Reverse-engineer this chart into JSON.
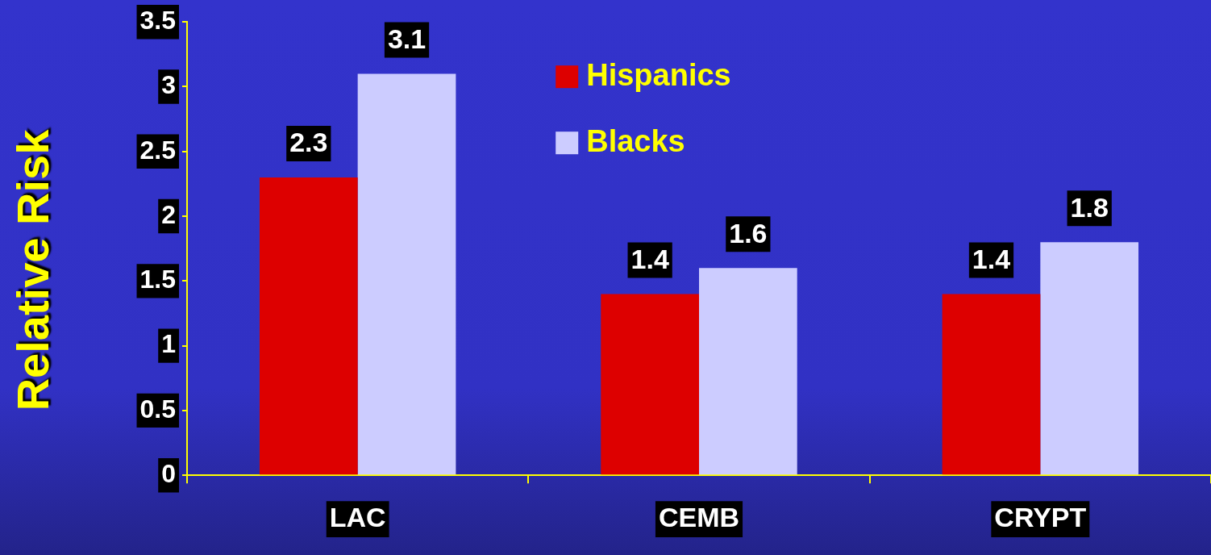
{
  "chart_data": {
    "type": "bar",
    "ylabel": "Relative Risk",
    "categories": [
      "LAC",
      "CEMB",
      "CRYPT"
    ],
    "series": [
      {
        "name": "Hispanics",
        "color": "#dd0000",
        "values": [
          2.3,
          1.4,
          1.4
        ]
      },
      {
        "name": "Blacks",
        "color": "#ccccff",
        "values": [
          3.1,
          1.6,
          1.8
        ]
      }
    ],
    "ylim": [
      0,
      3.5
    ],
    "yticks": [
      0,
      0.5,
      1,
      1.5,
      2,
      2.5,
      3,
      3.5
    ],
    "grid": false,
    "legend": "top",
    "data_labels": true
  }
}
